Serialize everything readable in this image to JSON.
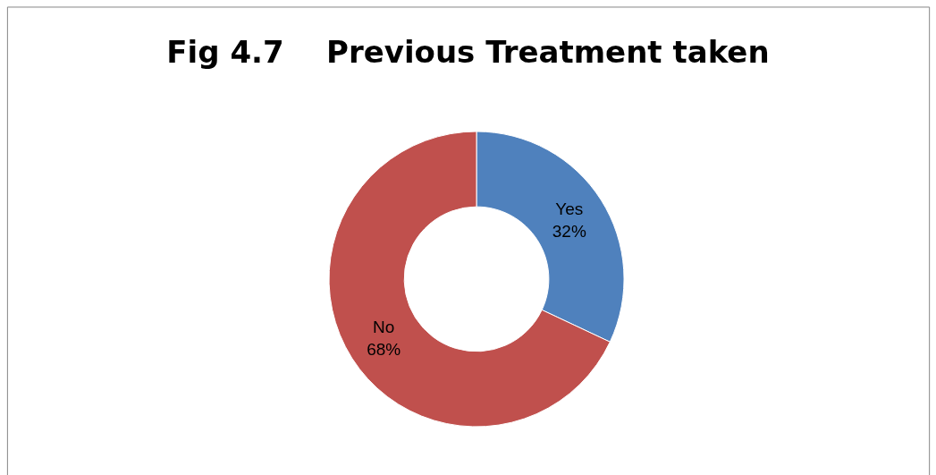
{
  "chart_data": {
    "type": "donut",
    "title": "Fig 4.7    Previous Treatment taken",
    "categories": [
      "Yes",
      "No"
    ],
    "values": [
      32,
      68
    ],
    "value_labels": [
      "32%",
      "68%"
    ],
    "colors": [
      "#4f81bd",
      "#c0504d"
    ]
  }
}
